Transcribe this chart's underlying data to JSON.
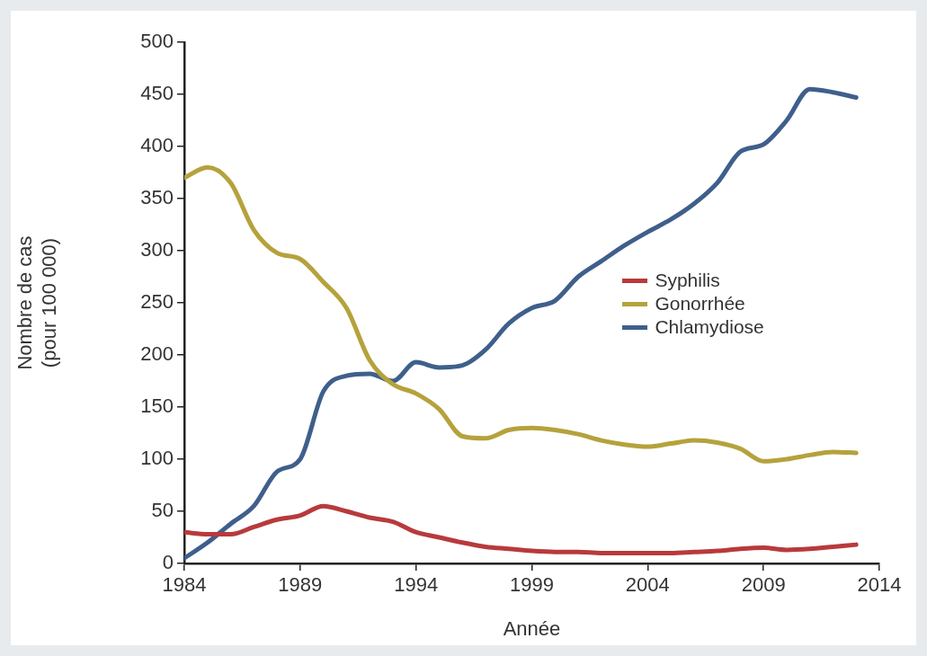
{
  "chart_data": {
    "type": "line",
    "xlabel": "Année",
    "ylabel": "Nombre de cas (pour 100 000)",
    "x": [
      1984,
      1985,
      1986,
      1987,
      1988,
      1989,
      1990,
      1991,
      1992,
      1993,
      1994,
      1995,
      1996,
      1997,
      1998,
      1999,
      2000,
      2001,
      2002,
      2003,
      2004,
      2005,
      2006,
      2007,
      2008,
      2009,
      2010,
      2011,
      2012,
      2013
    ],
    "series": [
      {
        "name": "Syphilis",
        "color": "#b83a3c",
        "values": [
          30,
          28,
          28,
          35,
          42,
          46,
          55,
          50,
          44,
          40,
          30,
          25,
          20,
          16,
          14,
          12,
          11,
          11,
          10,
          10,
          10,
          10,
          11,
          12,
          14,
          15,
          13,
          14,
          16,
          18
        ]
      },
      {
        "name": "Gonorrhée",
        "color": "#b5a23c",
        "values": [
          370,
          380,
          365,
          320,
          298,
          292,
          270,
          245,
          195,
          172,
          163,
          148,
          122,
          120,
          128,
          130,
          128,
          124,
          118,
          114,
          112,
          115,
          118,
          116,
          110,
          98,
          100,
          104,
          107,
          106
        ]
      },
      {
        "name": "Chlamydiose",
        "color": "#3f5f8c",
        "values": [
          5,
          20,
          38,
          55,
          88,
          100,
          165,
          180,
          182,
          175,
          193,
          188,
          190,
          205,
          230,
          245,
          252,
          275,
          290,
          305,
          318,
          330,
          345,
          365,
          395,
          402,
          425,
          455,
          452,
          447
        ]
      }
    ],
    "xlim": [
      1984,
      2014
    ],
    "xticks": [
      1984,
      1989,
      1994,
      1999,
      2004,
      2009,
      2014
    ],
    "ylim": [
      0,
      500
    ],
    "yticks": [
      0,
      50,
      100,
      150,
      200,
      250,
      300,
      350,
      400,
      450,
      500
    ],
    "grid": false,
    "legend": "right",
    "marker": "none",
    "line_style": "solid"
  }
}
